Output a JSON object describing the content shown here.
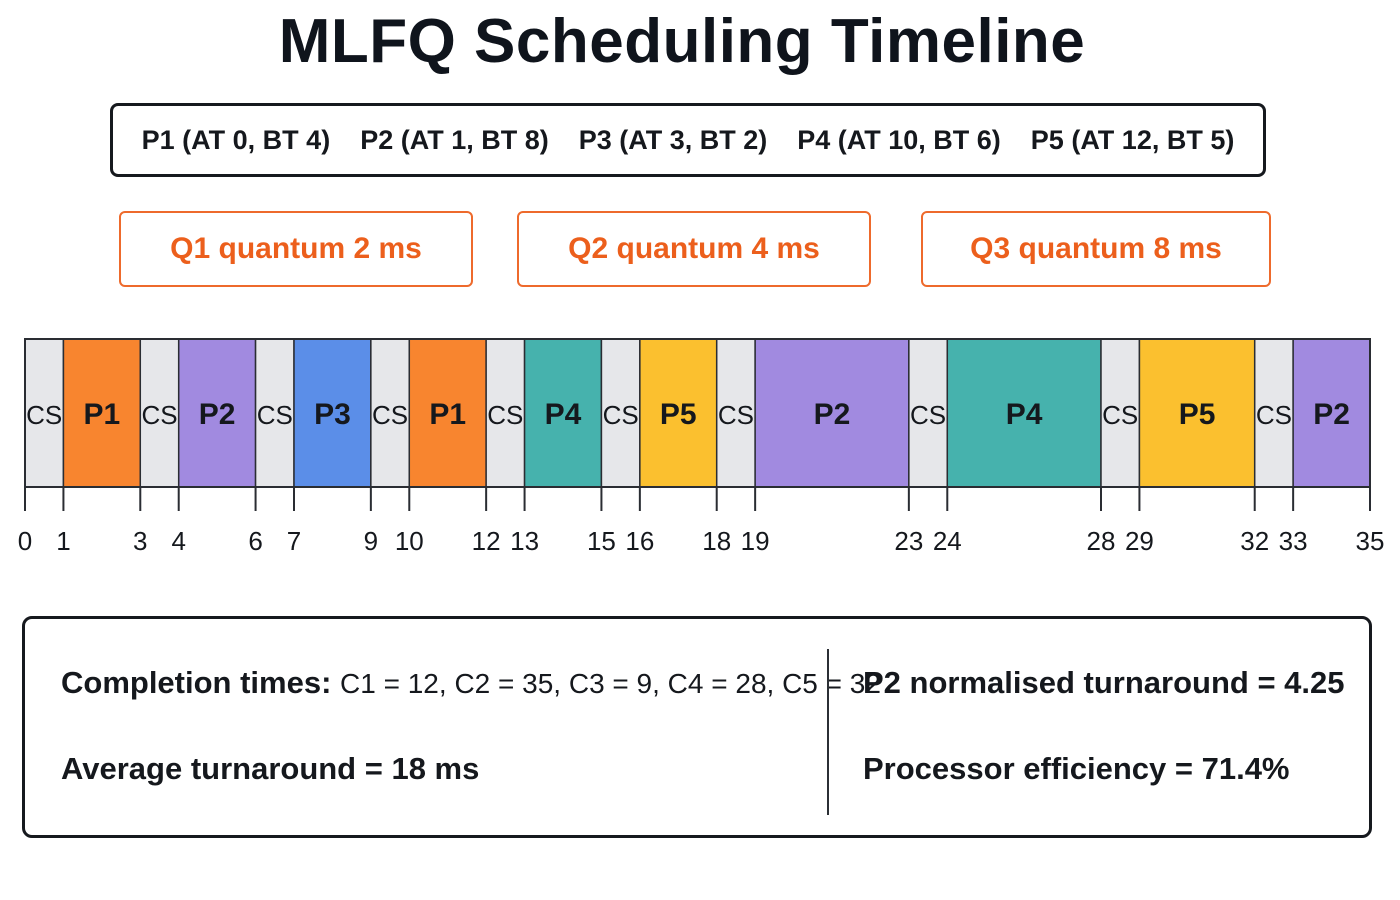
{
  "title": "MLFQ Scheduling Timeline",
  "processes": [
    "P1 (AT 0, BT 4)",
    "P2 (AT 1, BT 8)",
    "P3 (AT 3, BT 2)",
    "P4 (AT 10, BT 6)",
    "P5 (AT 12, BT 5)"
  ],
  "queues": [
    "Q1 quantum 2 ms",
    "Q2 quantum 4 ms",
    "Q3 quantum 8 ms"
  ],
  "colors": {
    "CS": "#e6e7ea",
    "P1": "#f8852f",
    "P2": "#a18ae0",
    "P3": "#5b8ee8",
    "P4": "#46b2ad",
    "P5": "#fbc02f",
    "accent": "#ec5f1c",
    "border": "#16191e"
  },
  "chart_data": {
    "type": "gantt",
    "segments": [
      {
        "label": "CS",
        "start": 0,
        "end": 1
      },
      {
        "label": "P1",
        "start": 1,
        "end": 3
      },
      {
        "label": "CS",
        "start": 3,
        "end": 4
      },
      {
        "label": "P2",
        "start": 4,
        "end": 6
      },
      {
        "label": "CS",
        "start": 6,
        "end": 7
      },
      {
        "label": "P3",
        "start": 7,
        "end": 9
      },
      {
        "label": "CS",
        "start": 9,
        "end": 10
      },
      {
        "label": "P1",
        "start": 10,
        "end": 12
      },
      {
        "label": "CS",
        "start": 12,
        "end": 13
      },
      {
        "label": "P4",
        "start": 13,
        "end": 15
      },
      {
        "label": "CS",
        "start": 15,
        "end": 16
      },
      {
        "label": "P5",
        "start": 16,
        "end": 18
      },
      {
        "label": "CS",
        "start": 18,
        "end": 19
      },
      {
        "label": "P2",
        "start": 19,
        "end": 23
      },
      {
        "label": "CS",
        "start": 23,
        "end": 24
      },
      {
        "label": "P4",
        "start": 24,
        "end": 28
      },
      {
        "label": "CS",
        "start": 28,
        "end": 29
      },
      {
        "label": "P5",
        "start": 29,
        "end": 32
      },
      {
        "label": "CS",
        "start": 32,
        "end": 33
      },
      {
        "label": "P2",
        "start": 33,
        "end": 35
      }
    ],
    "ticks": [
      0,
      1,
      3,
      4,
      6,
      7,
      9,
      10,
      12,
      13,
      15,
      16,
      18,
      19,
      23,
      24,
      28,
      29,
      32,
      33,
      35
    ],
    "xlim": [
      0,
      35
    ]
  },
  "summary": {
    "completion_label": "Completion times:",
    "completion_values": "C1 = 12, C2 = 35, C3 = 9, C4 = 28, C5 = 32",
    "average": "Average turnaround = 18 ms",
    "p2_normalised": "P2 normalised turnaround = 4.25",
    "efficiency": "Processor efficiency = 71.4%"
  }
}
